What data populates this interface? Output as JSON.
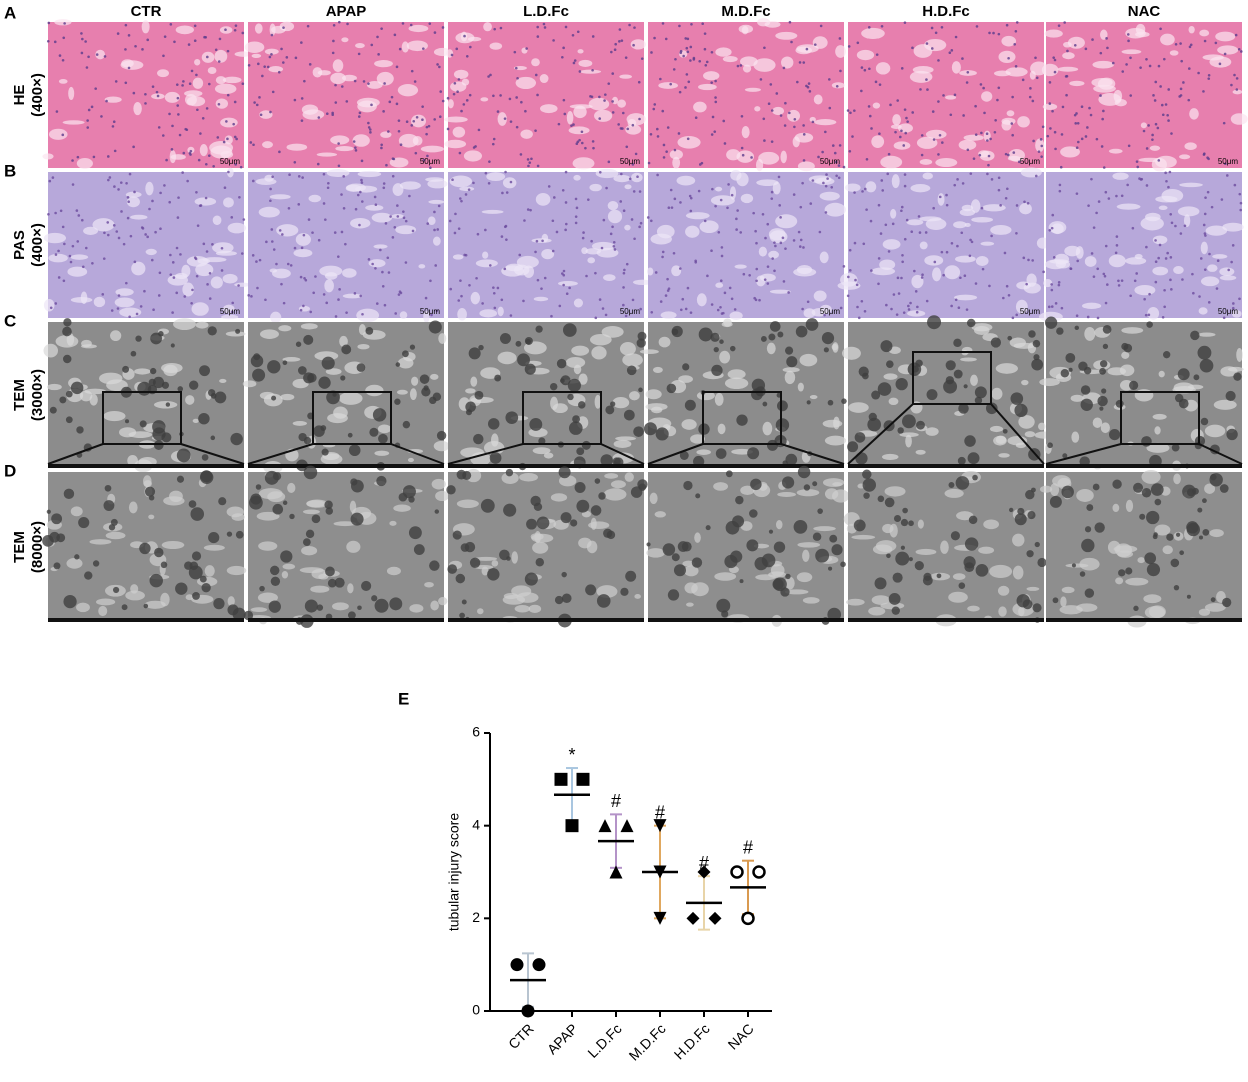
{
  "panels": {
    "labels": [
      "A",
      "B",
      "C",
      "D",
      "E"
    ],
    "columns": [
      "CTR",
      "APAP",
      "L.D.Fc",
      "M.D.Fc",
      "H.D.Fc",
      "NAC"
    ],
    "rows": [
      {
        "name": "HE",
        "magnification": "(400×)"
      },
      {
        "name": "PAS",
        "magnification": "(400×)"
      },
      {
        "name": "TEM",
        "magnification": "(3000×)"
      },
      {
        "name": "TEM",
        "magnification": "(8000×)"
      }
    ],
    "scale_bar": "50μm"
  },
  "chart_data": {
    "type": "dotplot",
    "ylabel": "tubular injury score",
    "categories": [
      "CTR",
      "APAP",
      "L.D.Fc",
      "M.D.Fc",
      "H.D.Fc",
      "NAC"
    ],
    "ylim": [
      0,
      6
    ],
    "yticks": [
      0,
      2,
      4,
      6
    ],
    "groups": [
      {
        "values": [
          1,
          1,
          0
        ],
        "mean": 0.667,
        "sd": 0.577,
        "color": "#b8c4d0",
        "marker": "circle"
      },
      {
        "values": [
          5,
          5,
          4
        ],
        "mean": 4.667,
        "sd": 0.577,
        "color": "#a9c6e0",
        "marker": "square",
        "annotation": "*"
      },
      {
        "values": [
          4,
          4,
          3
        ],
        "mean": 3.667,
        "sd": 0.577,
        "color": "#b493c8",
        "marker": "triangle-up",
        "annotation": "#"
      },
      {
        "values": [
          4,
          3,
          2
        ],
        "mean": 3,
        "sd": 1,
        "color": "#e0a860",
        "marker": "triangle-down",
        "annotation": "#"
      },
      {
        "values": [
          3,
          2,
          2
        ],
        "mean": 2.333,
        "sd": 0.577,
        "color": "#e8d4a8",
        "marker": "diamond",
        "annotation": "#"
      },
      {
        "values": [
          3,
          3,
          2
        ],
        "mean": 2.667,
        "sd": 0.577,
        "color": "#d99a50",
        "marker": "open-circle",
        "annotation": "#"
      }
    ]
  }
}
